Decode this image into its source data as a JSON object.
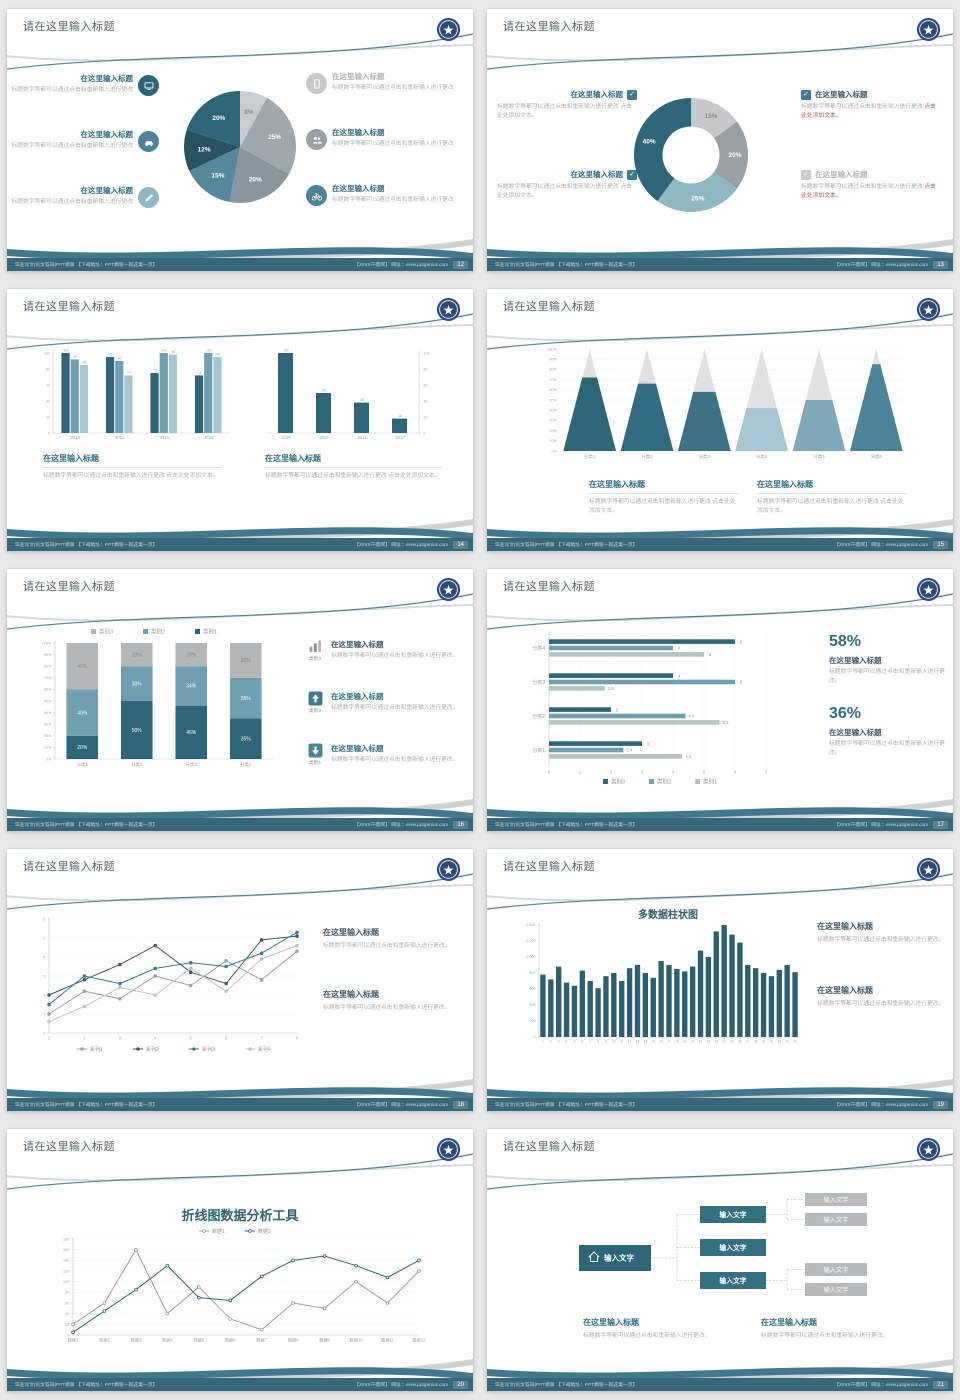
{
  "common": {
    "slide_title": "请在这里输入标题",
    "footer_left": "毕业论文|论文答辩|PPT模板 【下载地址：PPT模板—就这第一页】",
    "footer_right": "【20XX千图网】 网址：www.pptgenius.com",
    "heading": "在这里输入标题",
    "body_a": "标题数字等都可以通过点击和重新输入进行更改",
    "body_b": "标题数字等都可以通过点击和重新输入进行更改 点击此处添加文本。",
    "body_c": "标题数字等都可以通过点击和重新输入进行更改。",
    "body_red": "点击此处添加文本。",
    "check": "✓"
  },
  "colors": {
    "teal_dark": "#2e6578",
    "teal_mid": "#6f9fb0",
    "teal_light": "#a7c6d2",
    "gray": "#b4b7b9",
    "footer": "#376879",
    "logo_navy": "#2c4a77",
    "accent_red": "#b85450"
  },
  "slides": [
    {
      "page_no": "12",
      "chart_data": {
        "type": "pie",
        "labels": [
          "8%",
          "25%",
          "20%",
          "15%",
          "12%",
          "20%"
        ],
        "values": [
          8,
          25,
          20,
          15,
          12,
          20
        ],
        "colors": [
          "#c9ccce",
          "#9fa8ad",
          "#8a969e",
          "#55889b",
          "#27525f",
          "#2e6578"
        ],
        "label_colors": [
          "#858b8f",
          "#ffffff",
          "#ffffff",
          "#ffffff",
          "#ffffff",
          "#ffffff"
        ]
      }
    },
    {
      "page_no": "13",
      "chart_data": {
        "type": "donut",
        "labels": [
          "15%",
          "20%",
          "25%",
          "40%"
        ],
        "values": [
          15,
          20,
          25,
          40
        ],
        "colors": [
          "#c6c9cb",
          "#9aa0a4",
          "#8fb7c4",
          "#2e6578"
        ],
        "label_colors": [
          "#84898c",
          "#ffffff",
          "#ffffff",
          "#ffffff"
        ]
      }
    },
    {
      "page_no": "14",
      "chart_data": [
        {
          "type": "grouped_bars",
          "categories": [
            "2010",
            "2012",
            "2014",
            "2016"
          ],
          "series": [
            {
              "name": "系列1",
              "values": [
                100,
                95,
                75,
                72
              ]
            },
            {
              "name": "系列2",
              "values": [
                92,
                90,
                100,
                100
              ]
            },
            {
              "name": "系列3",
              "values": [
                85,
                72,
                98,
                95
              ]
            }
          ],
          "ylim": [
            0,
            100
          ]
        },
        {
          "type": "grouped_bars",
          "categories": [
            "2016",
            "2014",
            "2012",
            "2010"
          ],
          "series": [
            {
              "name": "系列1",
              "values": [
                100,
                50,
                38,
                18
              ]
            }
          ],
          "ylim": [
            0,
            100
          ]
        }
      ]
    },
    {
      "page_no": "15",
      "chart_data": {
        "type": "pyramid",
        "categories": [
          "分类1",
          "分类2",
          "分类3",
          "分类4",
          "分类5",
          "分类6"
        ],
        "fill_percent": [
          72,
          66,
          58,
          42,
          50,
          85
        ],
        "colors": [
          "#2e6578",
          "#336c80",
          "#3d7284",
          "#a7c6d2",
          "#7fa9b8",
          "#4d8399"
        ],
        "ylim": [
          0,
          100
        ]
      }
    },
    {
      "page_no": "16",
      "legend": [
        "类别3",
        "类别2",
        "类别1"
      ],
      "chart_data": {
        "type": "stacked_bars",
        "categories": [
          "分类1",
          "分类2",
          "分类3",
          "分类4"
        ],
        "series": [
          {
            "name": "类别1",
            "values": [
              20,
              50,
              46,
              35
            ]
          },
          {
            "name": "类别2",
            "values": [
              40,
              30,
              34,
              35
            ]
          },
          {
            "name": "类别3",
            "values": [
              40,
              20,
              20,
              30
            ]
          }
        ],
        "ylim": [
          0,
          100
        ]
      },
      "icon_captions": [
        "类别3",
        "类别2",
        "类别1"
      ]
    },
    {
      "page_no": "17",
      "legend": [
        "类别3",
        "类别2",
        "类别1"
      ],
      "stats": [
        {
          "value": "58%"
        },
        {
          "value": "36%"
        }
      ],
      "chart_data": {
        "type": "hbars",
        "categories": [
          "分类1",
          "分类2",
          "分类3",
          "分类4"
        ],
        "series": [
          {
            "name": "类别3",
            "values": [
              3,
              2,
              4,
              6
            ]
          },
          {
            "name": "类别2",
            "values": [
              2.4,
              4.4,
              6,
              4
            ]
          },
          {
            "name": "类别1",
            "values": [
              4.3,
              5.5,
              1.8,
              5
            ]
          }
        ],
        "xlim": [
          0,
          7
        ]
      }
    },
    {
      "page_no": "18",
      "chart_data": {
        "type": "line",
        "x": [
          1,
          2,
          3,
          4,
          5,
          6,
          7,
          8
        ],
        "series": [
          {
            "name": "系列1",
            "values": [
              1,
              2.2,
              1.8,
              3,
              2.5,
              3.8,
              2.8,
              4.3
            ],
            "color": "#9aa0a3"
          },
          {
            "name": "系列2",
            "values": [
              2,
              2.8,
              3.6,
              4.6,
              3.2,
              2.6,
              4.9,
              5.1
            ],
            "color": "#41586a"
          },
          {
            "name": "系列3",
            "values": [
              1.5,
              3,
              2.6,
              3.4,
              3.7,
              3.5,
              4.2,
              5.3
            ],
            "color": "#3b7a90"
          },
          {
            "name": "系列4",
            "values": [
              0.6,
              1.4,
              2.4,
              2,
              3.4,
              2.2,
              3.9,
              4.6
            ],
            "color": "#bfc3c5"
          }
        ],
        "ylim": [
          0,
          6
        ]
      }
    },
    {
      "page_no": "19",
      "chart_data": {
        "type": "bar",
        "title": "多数据柱状图",
        "categories": [
          "1",
          "2",
          "3",
          "4",
          "5",
          "6",
          "7",
          "8",
          "9",
          "10",
          "11",
          "12",
          "13",
          "14",
          "15",
          "16",
          "17",
          "18",
          "19",
          "20",
          "21",
          "22",
          "23",
          "24",
          "25",
          "26",
          "27",
          "28",
          "29",
          "30",
          "31",
          "32",
          "33"
        ],
        "values": [
          780,
          720,
          880,
          680,
          640,
          830,
          700,
          610,
          760,
          800,
          700,
          860,
          900,
          800,
          740,
          950,
          900,
          850,
          820,
          880,
          1080,
          1000,
          1320,
          1400,
          1280,
          1180,
          900,
          860,
          800,
          760,
          840,
          900,
          810
        ],
        "ylim": [
          0,
          1400
        ]
      }
    },
    {
      "page_no": "20",
      "chart_data": {
        "type": "line",
        "title": "折线图数据分析工具",
        "x": [
          "数据1",
          "数据2",
          "数据3",
          "数据4",
          "数据5",
          "数据6",
          "数据7",
          "数据8",
          "数据9",
          "数据10",
          "数据11",
          "数据12"
        ],
        "series": [
          {
            "name": "数据1",
            "values": [
              20,
              60,
              160,
              40,
              90,
              30,
              10,
              60,
              50,
              100,
              60,
              120
            ],
            "color": "#9aa0a3"
          },
          {
            "name": "数据2",
            "values": [
              5,
              45,
              85,
              130,
              70,
              65,
              110,
              140,
              148,
              130,
              108,
              140
            ],
            "color": "#2e6578"
          }
        ],
        "ylim": [
          0,
          180
        ]
      }
    },
    {
      "page_no": "21",
      "org": {
        "root": "输入文字",
        "mid": [
          "输入文字",
          "输入文字",
          "输入文字"
        ],
        "leaves": [
          "输入文字",
          "输入文字",
          "输入文字",
          "输入文字"
        ]
      }
    }
  ]
}
